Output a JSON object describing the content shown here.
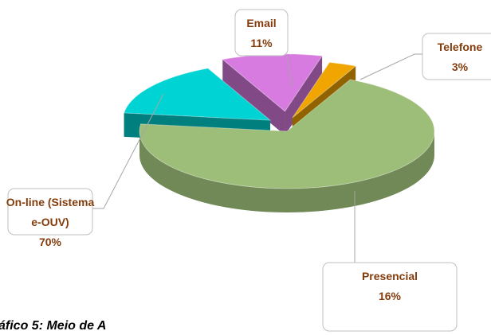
{
  "chart_data": {
    "type": "pie",
    "categories": [
      "Email",
      "Telefone",
      "On-line (Sistema e-OUV)",
      "Presencial"
    ],
    "values": [
      11,
      3,
      70,
      16
    ],
    "value_labels": [
      "11%",
      "3%",
      "70%",
      "16%"
    ],
    "colors": [
      "#D77BE0",
      "#F0A500",
      "#9DBE78",
      "#00D3D3"
    ],
    "caption": "áfico 5: Meio de A"
  }
}
